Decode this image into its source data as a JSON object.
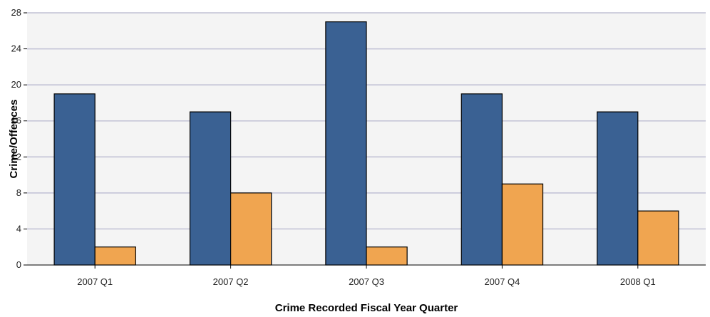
{
  "chart_data": {
    "type": "bar",
    "title": "",
    "xlabel": "Crime Recorded Fiscal Year Quarter",
    "ylabel": "Crime/Offences",
    "categories": [
      "2007 Q1",
      "2007 Q2",
      "2007 Q3",
      "2007 Q4",
      "2008 Q1"
    ],
    "series": [
      {
        "values": [
          19,
          17,
          27,
          19,
          17
        ],
        "color": "#3a6193"
      },
      {
        "values": [
          2,
          8,
          2,
          9,
          6
        ],
        "color": "#f0a550"
      }
    ],
    "ylim": [
      0,
      28
    ],
    "yticks": [
      0,
      4,
      8,
      12,
      16,
      20,
      24,
      28
    ],
    "grid": true,
    "legend": "none",
    "colors": {
      "plot_background": "#f4f4f4",
      "gridline": "#c0c0d4",
      "bar_outline": "#000000"
    }
  }
}
